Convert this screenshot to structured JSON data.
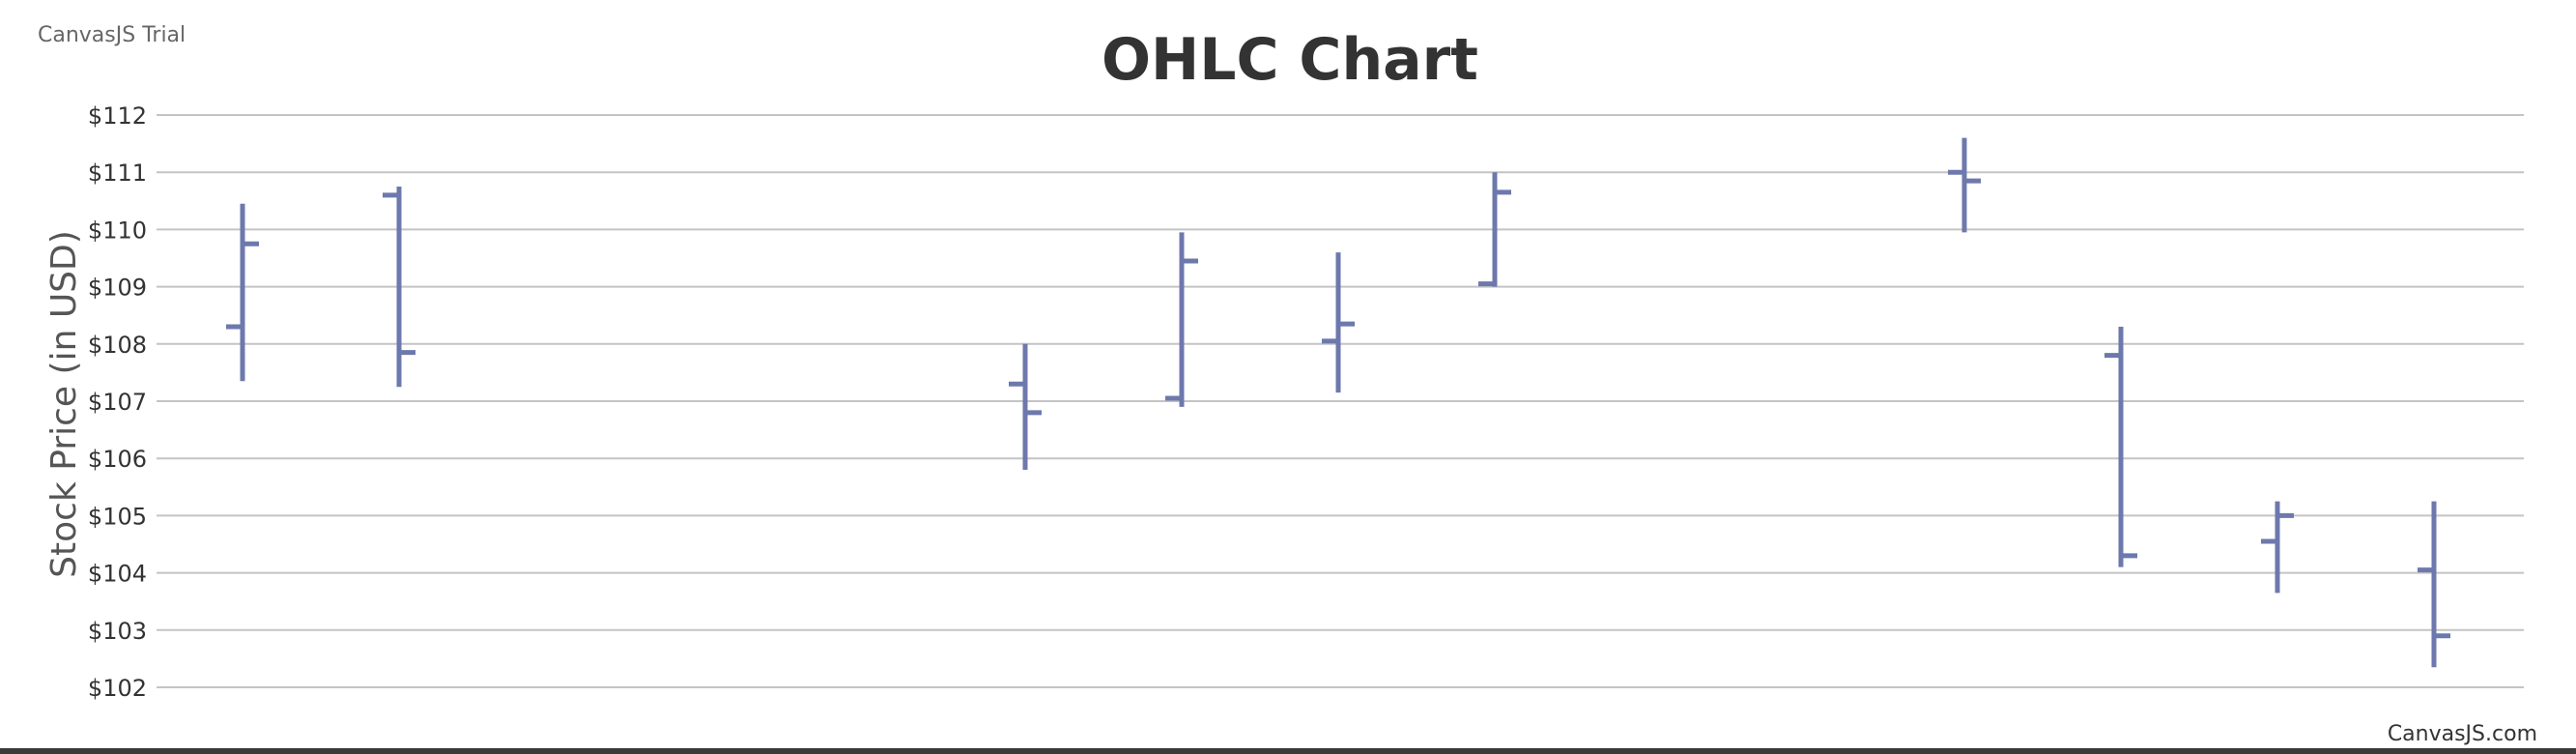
{
  "trial_label": "CanvasJS Trial",
  "credit_label": "CanvasJS.com",
  "chart_data": {
    "type": "ohlc",
    "title": "OHLC Chart",
    "ylabel": "Stock Price (in USD)",
    "ylim": [
      102,
      112
    ],
    "yticks": [
      {
        "value": 112,
        "label": "$112"
      },
      {
        "value": 111,
        "label": "$111"
      },
      {
        "value": 110,
        "label": "$110"
      },
      {
        "value": 109,
        "label": "$109"
      },
      {
        "value": 108,
        "label": "$108"
      },
      {
        "value": 107,
        "label": "$107"
      },
      {
        "value": 106,
        "label": "$106"
      },
      {
        "value": 105,
        "label": "$105"
      },
      {
        "value": 104,
        "label": "$104"
      },
      {
        "value": 103,
        "label": "$103"
      },
      {
        "value": 102,
        "label": "$102"
      }
    ],
    "grid": true,
    "color": "#6d78ad",
    "points": [
      {
        "x": 1,
        "open": 108.3,
        "high": 110.45,
        "low": 107.35,
        "close": 109.75
      },
      {
        "x": 2,
        "open": 110.6,
        "high": 110.75,
        "low": 107.25,
        "close": 107.85
      },
      {
        "x": 6,
        "open": 107.3,
        "high": 108.0,
        "low": 105.8,
        "close": 106.8
      },
      {
        "x": 7,
        "open": 107.05,
        "high": 109.95,
        "low": 106.9,
        "close": 109.45
      },
      {
        "x": 8,
        "open": 108.05,
        "high": 109.6,
        "low": 107.15,
        "close": 108.35
      },
      {
        "x": 9,
        "open": 109.05,
        "high": 111.0,
        "low": 109.0,
        "close": 110.65
      },
      {
        "x": 12,
        "open": 111.0,
        "high": 111.6,
        "low": 109.95,
        "close": 110.85
      },
      {
        "x": 13,
        "open": 107.8,
        "high": 108.3,
        "low": 104.1,
        "close": 104.3
      },
      {
        "x": 14,
        "open": 104.55,
        "high": 105.25,
        "low": 103.65,
        "close": 105.0
      },
      {
        "x": 15,
        "open": 104.05,
        "high": 105.25,
        "low": 102.35,
        "close": 102.9
      }
    ]
  }
}
